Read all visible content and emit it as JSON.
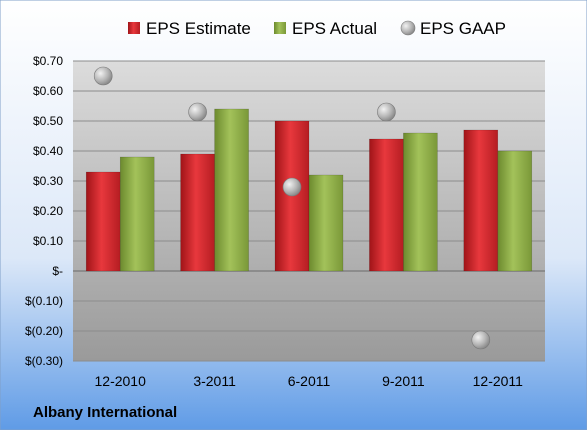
{
  "chart_data": {
    "type": "bar",
    "categories": [
      "12-2010",
      "3-2011",
      "6-2011",
      "9-2011",
      "12-2011"
    ],
    "series": [
      {
        "name": "EPS Estimate",
        "kind": "bar",
        "color": "#d42a2f",
        "values": [
          0.33,
          0.39,
          0.5,
          0.44,
          0.47
        ]
      },
      {
        "name": "EPS Actual",
        "kind": "bar",
        "color": "#8fae47",
        "values": [
          0.38,
          0.54,
          0.32,
          0.46,
          0.4
        ]
      },
      {
        "name": "EPS GAAP",
        "kind": "marker",
        "color": "#b8b8b8",
        "values": [
          0.65,
          0.53,
          0.28,
          0.53,
          -0.23
        ]
      }
    ],
    "ylim": [
      -0.3,
      0.7
    ],
    "yticks": [
      0.7,
      0.6,
      0.5,
      0.4,
      0.3,
      0.2,
      0.1,
      0.0,
      -0.1,
      -0.2,
      -0.3
    ],
    "ytick_labels": [
      "$0.70",
      "$0.60",
      "$0.50",
      "$0.40",
      "$0.30",
      "$0.20",
      "$0.10",
      "$-",
      "$(0.10)",
      "$(0.20)",
      "$(0.30)"
    ],
    "legend_position": "top",
    "company": "Albany International"
  }
}
